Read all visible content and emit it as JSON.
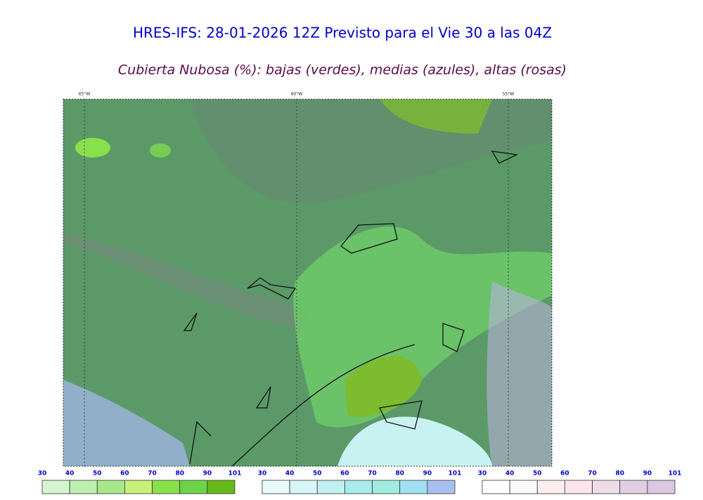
{
  "header": {
    "title": "HRES-IFS: 28-01-2026 12Z Previsto para el Vie 30 a las 04Z",
    "subtitle": "Cubierta Nubosa (%): bajas (verdes), medias (azules), altas (rosas)"
  },
  "map": {
    "longitudes": [
      "65°W",
      "60°W",
      "55°W"
    ]
  },
  "colorbars": [
    {
      "ticks": [
        30,
        40,
        50,
        60,
        70,
        80,
        90,
        101
      ],
      "colors": [
        "#d4f5d0",
        "#bdf0b0",
        "#a8e88a",
        "#c8f07a",
        "#88e04a",
        "#6cd44a",
        "#66b81a"
      ]
    },
    {
      "ticks": [
        30,
        40,
        50,
        60,
        70,
        80,
        90,
        101
      ],
      "colors": [
        "#e8fafa",
        "#d8f6f8",
        "#c0f0f0",
        "#a8ecec",
        "#a0ece0",
        "#a0e0f0",
        "#a8c0f0"
      ]
    },
    {
      "ticks": [
        30,
        40,
        50,
        60,
        70,
        80,
        90,
        101
      ],
      "colors": [
        "#ffffff",
        "#fafafa",
        "#fbeef0",
        "#fbe6ee",
        "#eedde8",
        "#e0d0e4",
        "#d8c8e0"
      ]
    }
  ]
}
